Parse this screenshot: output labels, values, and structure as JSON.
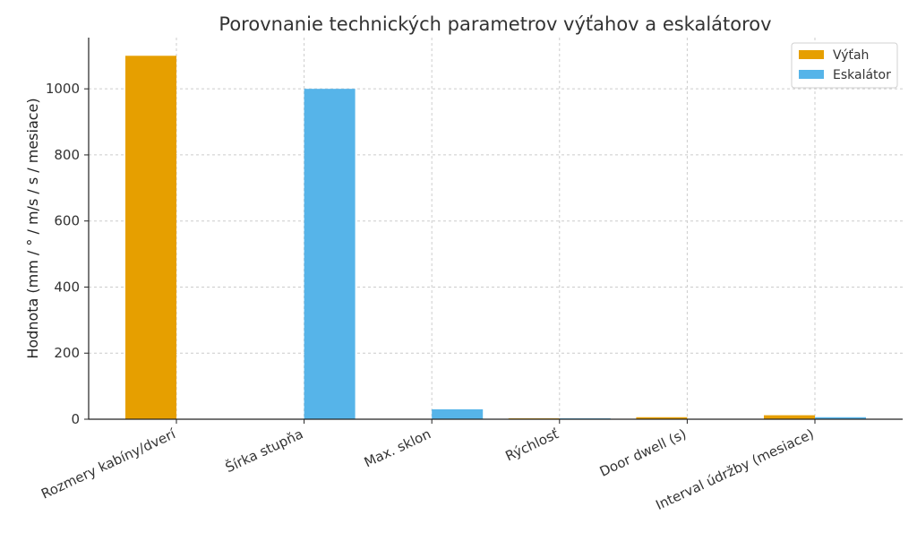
{
  "chart_data": {
    "type": "bar",
    "title": "Porovnanie technických parametrov výťahov a eskalátorov",
    "xlabel": "",
    "ylabel": "Hodnota (mm / ° / m/s / s / mesiace)",
    "categories": [
      "Rozmery kabíny/dverí",
      "Šírka stupňa",
      "Max. sklon",
      "Rýchlosť",
      "Door dwell (s)",
      "Interval údržby (mesiace)"
    ],
    "series": [
      {
        "name": "Výťah",
        "color": "#E69F00",
        "values": [
          1100,
          0,
          0,
          1,
          6,
          12
        ]
      },
      {
        "name": "Eskalátor",
        "color": "#56B4E9",
        "values": [
          0,
          1000,
          30,
          0.5,
          0,
          6
        ]
      }
    ],
    "yticks": [
      0,
      200,
      400,
      600,
      800,
      1000
    ],
    "ylim": [
      0,
      1155
    ],
    "grid": true,
    "legend_position": "top-right"
  }
}
